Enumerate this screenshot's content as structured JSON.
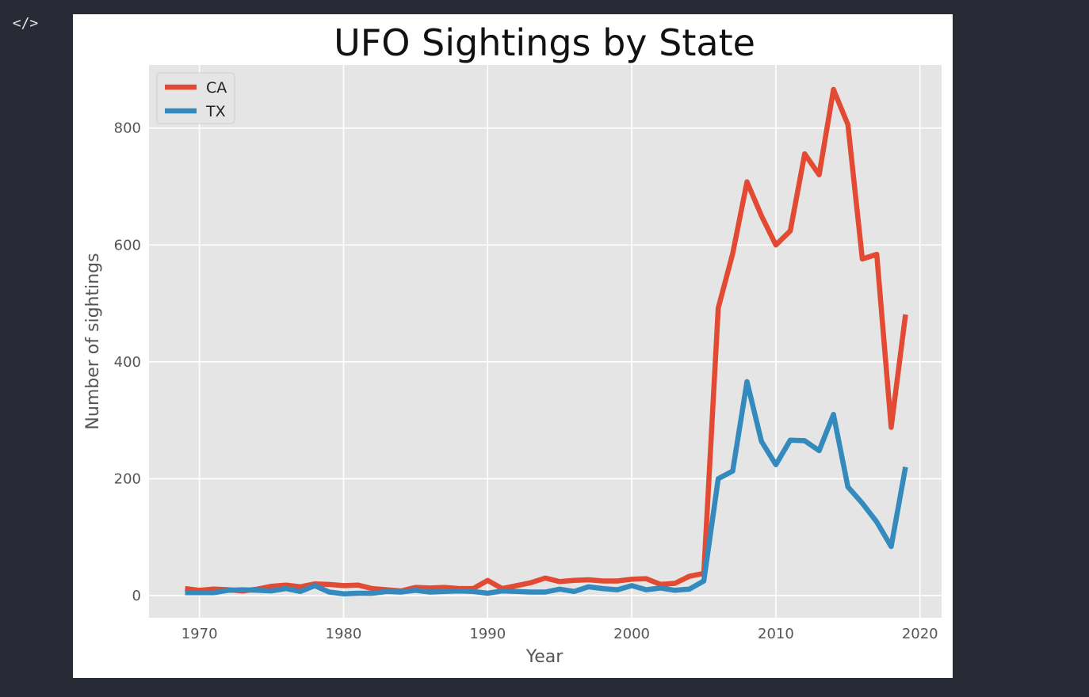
{
  "toolbar": {
    "code_toggle_glyph": "</>",
    "code_toggle_icon": "code-icon"
  },
  "chart_data": {
    "type": "line",
    "title": "UFO Sightings by State",
    "xlabel": "Year",
    "ylabel": "Number of sightings",
    "xlim": [
      1966.5,
      2021.5
    ],
    "ylim": [
      -38,
      908
    ],
    "xticks": [
      1970,
      1980,
      1990,
      2000,
      2010,
      2020
    ],
    "yticks": [
      0,
      200,
      400,
      600,
      800
    ],
    "grid": true,
    "legend_position": "top-left",
    "background": "#e5e5e5",
    "x": [
      1969,
      1970,
      1971,
      1972,
      1973,
      1974,
      1975,
      1976,
      1977,
      1978,
      1979,
      1980,
      1981,
      1982,
      1983,
      1984,
      1985,
      1986,
      1987,
      1988,
      1989,
      1990,
      1991,
      1992,
      1993,
      1994,
      1995,
      1996,
      1997,
      1998,
      1999,
      2000,
      2001,
      2002,
      2003,
      2004,
      2005,
      2006,
      2007,
      2008,
      2009,
      2010,
      2011,
      2012,
      2013,
      2014,
      2015,
      2016,
      2017,
      2018,
      2019
    ],
    "series": [
      {
        "name": "CA",
        "color": "#e24a33",
        "values": [
          12,
          9,
          11,
          10,
          8,
          11,
          16,
          18,
          15,
          20,
          19,
          17,
          18,
          12,
          10,
          8,
          14,
          13,
          14,
          12,
          12,
          26,
          12,
          17,
          22,
          30,
          24,
          26,
          27,
          25,
          25,
          28,
          29,
          19,
          21,
          33,
          38,
          492,
          585,
          708,
          650,
          600,
          624,
          756,
          720,
          866,
          806,
          576,
          584,
          288,
          481
        ]
      },
      {
        "name": "TX",
        "color": "#348abd",
        "values": [
          5,
          5,
          5,
          9,
          10,
          9,
          8,
          12,
          7,
          17,
          6,
          3,
          4,
          4,
          7,
          6,
          9,
          6,
          7,
          8,
          7,
          4,
          8,
          7,
          6,
          6,
          11,
          7,
          15,
          12,
          10,
          17,
          10,
          13,
          9,
          11,
          25,
          200,
          213,
          366,
          264,
          224,
          266,
          265,
          248,
          310,
          186,
          158,
          126,
          84,
          220
        ]
      }
    ]
  }
}
